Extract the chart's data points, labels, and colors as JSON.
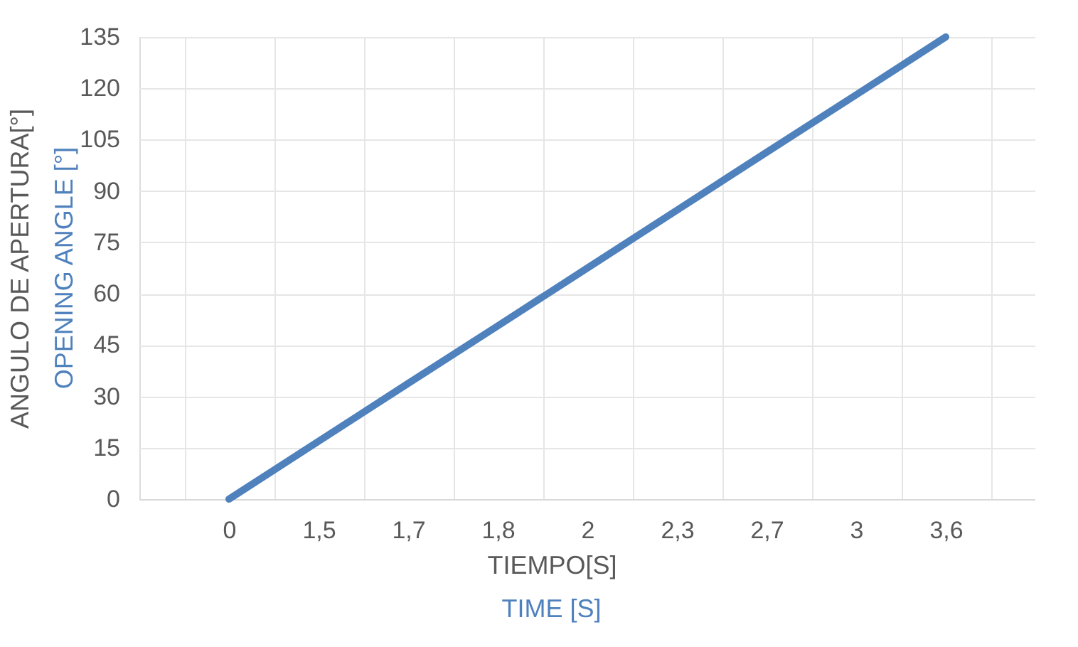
{
  "chart_data": {
    "type": "line",
    "xlabel": "TIEMPO[S]",
    "ylabel": "ANGULO DE APERTURA[°]",
    "annotations": [
      "OPENING ANGLE [°]",
      "TIME [S]"
    ],
    "categories": [
      "0",
      "1,5",
      "1,7",
      "1,8",
      "2",
      "2,3",
      "2,7",
      "3",
      "3,6",
      null
    ],
    "series": [
      {
        "color": "#4f81bd",
        "values": [
          0,
          16.9,
          33.8,
          50.6,
          67.5,
          84.4,
          101.3,
          118.1,
          135,
          null
        ]
      }
    ],
    "ylim": [
      0,
      135
    ],
    "yticks": [
      0,
      15,
      30,
      45,
      60,
      75,
      90,
      105,
      120,
      135
    ],
    "grid": true,
    "marker": "none",
    "line_style": "solid"
  }
}
